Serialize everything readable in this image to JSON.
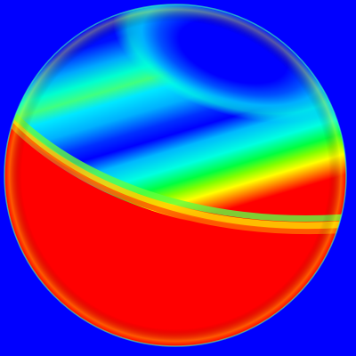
{
  "scene": {
    "background_color": "#0000ff",
    "colormap": "jet",
    "colors": {
      "blue": "#0000ff",
      "light_blue": "#00a0ff",
      "cyan": "#00f0f0",
      "green": "#00ff66",
      "yellow": "#ffff00",
      "orange": "#ff8000",
      "red": "#ff0000"
    },
    "object": "sphere"
  }
}
